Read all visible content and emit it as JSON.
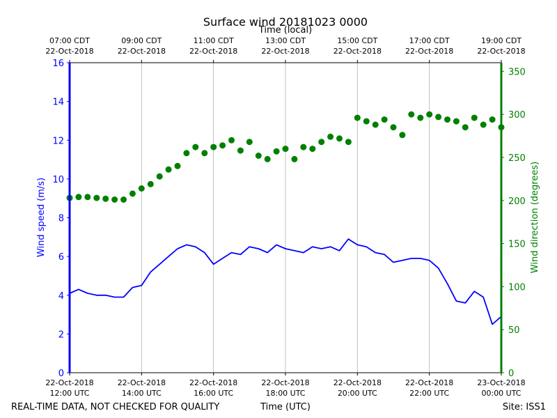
{
  "chart_data": {
    "type": "line",
    "title": "Surface wind 20181023 0000",
    "top_axis_label": "Time (local)",
    "bottom_axis_label": "Time (UTC)",
    "footer_left": "REAL-TIME DATA, NOT CHECKED FOR QUALITY",
    "footer_right": "Site: ISS1",
    "left_axis": {
      "label": "Wind speed (m/s)",
      "color": "#0000ff",
      "ylim": [
        0,
        16
      ],
      "ticks": [
        "0",
        "2",
        "4",
        "6",
        "8",
        "10",
        "12",
        "14",
        "16"
      ]
    },
    "right_axis": {
      "label": "Wind direction (degrees)",
      "color": "#008000",
      "ylim": [
        0,
        360
      ],
      "ticks": [
        "0",
        "50",
        "100",
        "150",
        "200",
        "250",
        "300",
        "350"
      ]
    },
    "x_range_hours_utc": [
      12,
      24
    ],
    "bottom_ticks": [
      {
        "line1": "22-Oct-2018",
        "line2": "12:00 UTC"
      },
      {
        "line1": "22-Oct-2018",
        "line2": "14:00 UTC"
      },
      {
        "line1": "22-Oct-2018",
        "line2": "16:00 UTC"
      },
      {
        "line1": "22-Oct-2018",
        "line2": "18:00 UTC"
      },
      {
        "line1": "22-Oct-2018",
        "line2": "20:00 UTC"
      },
      {
        "line1": "22-Oct-2018",
        "line2": "22:00 UTC"
      },
      {
        "line1": "23-Oct-2018",
        "line2": "00:00 UTC"
      }
    ],
    "top_ticks": [
      {
        "line1": "07:00 CDT",
        "line2": "22-Oct-2018"
      },
      {
        "line1": "09:00 CDT",
        "line2": "22-Oct-2018"
      },
      {
        "line1": "11:00 CDT",
        "line2": "22-Oct-2018"
      },
      {
        "line1": "13:00 CDT",
        "line2": "22-Oct-2018"
      },
      {
        "line1": "15:00 CDT",
        "line2": "22-Oct-2018"
      },
      {
        "line1": "17:00 CDT",
        "line2": "22-Oct-2018"
      },
      {
        "line1": "19:00 CDT",
        "line2": "22-Oct-2018"
      }
    ],
    "grid": "vertical",
    "series": [
      {
        "axis": "left",
        "style": "line",
        "color": "#0000ff",
        "x_hours_utc": [
          12.0,
          12.25,
          12.5,
          12.75,
          13.0,
          13.25,
          13.5,
          13.75,
          14.0,
          14.25,
          14.5,
          14.75,
          15.0,
          15.25,
          15.5,
          15.75,
          16.0,
          16.25,
          16.5,
          16.75,
          17.0,
          17.25,
          17.5,
          17.75,
          18.0,
          18.25,
          18.5,
          18.75,
          19.0,
          19.25,
          19.5,
          19.75,
          20.0,
          20.25,
          20.5,
          20.75,
          21.0,
          21.25,
          21.5,
          21.75,
          22.0,
          22.25,
          22.5,
          22.75,
          23.0,
          23.25,
          23.5,
          23.75,
          24.0
        ],
        "values": [
          4.1,
          4.3,
          4.1,
          4.0,
          4.0,
          3.9,
          3.9,
          4.4,
          4.5,
          5.2,
          5.6,
          6.0,
          6.4,
          6.6,
          6.5,
          6.2,
          5.6,
          5.9,
          6.2,
          6.1,
          6.5,
          6.4,
          6.2,
          6.6,
          6.4,
          6.3,
          6.2,
          6.5,
          6.4,
          6.5,
          6.3,
          6.9,
          6.6,
          6.5,
          6.2,
          6.1,
          5.7,
          5.8,
          5.9,
          5.9,
          5.8,
          5.4,
          4.6,
          3.7,
          3.6,
          4.2,
          3.9,
          2.5,
          2.9
        ]
      },
      {
        "axis": "right",
        "style": "markers",
        "color": "#008000",
        "x_hours_utc": [
          12.0,
          12.25,
          12.5,
          12.75,
          13.0,
          13.25,
          13.5,
          13.75,
          14.0,
          14.25,
          14.5,
          14.75,
          15.0,
          15.25,
          15.5,
          15.75,
          16.0,
          16.25,
          16.5,
          16.75,
          17.0,
          17.25,
          17.5,
          17.75,
          18.0,
          18.25,
          18.5,
          18.75,
          19.0,
          19.25,
          19.5,
          19.75,
          20.0,
          20.25,
          20.5,
          20.75,
          21.0,
          21.25,
          21.5,
          21.75,
          22.0,
          22.25,
          22.5,
          22.75,
          23.0,
          23.25,
          23.5,
          23.75,
          24.0
        ],
        "values": [
          203,
          204,
          204,
          203,
          202,
          201,
          201,
          208,
          214,
          219,
          228,
          236,
          240,
          255,
          262,
          255,
          262,
          264,
          270,
          258,
          268,
          252,
          248,
          257,
          260,
          248,
          262,
          260,
          268,
          274,
          272,
          268,
          296,
          292,
          288,
          294,
          285,
          276,
          300,
          296,
          300,
          297,
          294,
          292,
          285,
          296,
          288,
          294,
          285
        ]
      }
    ]
  }
}
